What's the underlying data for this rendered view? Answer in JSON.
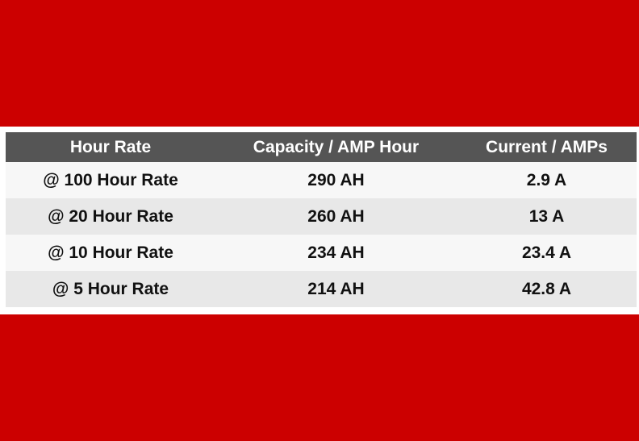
{
  "colors": {
    "band": "#cc0000",
    "header_bg": "#555555",
    "row_light": "#f7f7f7",
    "row_dark": "#e8e8e8"
  },
  "table": {
    "columns": [
      "Hour Rate",
      "Capacity / AMP Hour",
      "Current / AMPs"
    ],
    "rows": [
      [
        "@ 100 Hour Rate",
        "290 AH",
        "2.9 A"
      ],
      [
        "@ 20 Hour Rate",
        "260 AH",
        "13 A"
      ],
      [
        "@ 10 Hour Rate",
        "234 AH",
        "23.4 A"
      ],
      [
        "@ 5 Hour Rate",
        "214 AH",
        "42.8 A"
      ]
    ]
  }
}
